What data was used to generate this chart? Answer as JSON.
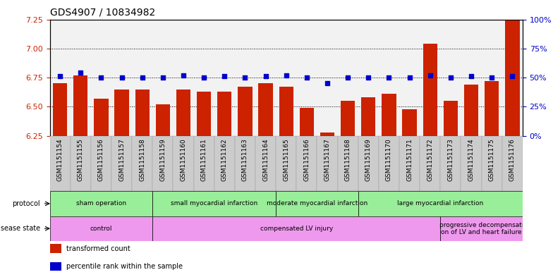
{
  "title": "GDS4907 / 10834982",
  "samples": [
    "GSM1151154",
    "GSM1151155",
    "GSM1151156",
    "GSM1151157",
    "GSM1151158",
    "GSM1151159",
    "GSM1151160",
    "GSM1151161",
    "GSM1151162",
    "GSM1151163",
    "GSM1151164",
    "GSM1151165",
    "GSM1151166",
    "GSM1151167",
    "GSM1151168",
    "GSM1151169",
    "GSM1151170",
    "GSM1151171",
    "GSM1151172",
    "GSM1151173",
    "GSM1151174",
    "GSM1151175",
    "GSM1151176"
  ],
  "bar_values": [
    6.7,
    6.77,
    6.57,
    6.65,
    6.65,
    6.52,
    6.65,
    6.63,
    6.63,
    6.67,
    6.7,
    6.67,
    6.49,
    6.28,
    6.55,
    6.58,
    6.61,
    6.48,
    7.04,
    6.55,
    6.69,
    6.72,
    7.25
  ],
  "dot_percentiles": [
    51,
    54,
    50,
    50,
    50,
    50,
    52,
    50,
    51,
    50,
    51,
    52,
    50,
    45,
    50,
    50,
    50,
    50,
    52,
    50,
    51,
    50,
    51
  ],
  "ylim_left": [
    6.25,
    7.25
  ],
  "yticks_left": [
    6.25,
    6.5,
    6.75,
    7.0,
    7.25
  ],
  "ylim_right": [
    0,
    100
  ],
  "yticks_right": [
    0,
    25,
    50,
    75,
    100
  ],
  "bar_color": "#cc2200",
  "dot_color": "#0000cc",
  "bg_color": "#ffffff",
  "grid_color": "#000000",
  "protocol_labels": [
    {
      "text": "sham operation",
      "start": 0,
      "end": 5,
      "color": "#99ee99"
    },
    {
      "text": "small myocardial infarction",
      "start": 5,
      "end": 11,
      "color": "#99ee99"
    },
    {
      "text": "moderate myocardial infarction",
      "start": 11,
      "end": 15,
      "color": "#99ee99"
    },
    {
      "text": "large myocardial infarction",
      "start": 15,
      "end": 23,
      "color": "#99ee99"
    }
  ],
  "disease_labels": [
    {
      "text": "control",
      "start": 0,
      "end": 5,
      "color": "#ee99ee"
    },
    {
      "text": "compensated LV injury",
      "start": 5,
      "end": 19,
      "color": "#ee99ee"
    },
    {
      "text": "progressive decompensati\non of LV and heart failure",
      "start": 19,
      "end": 23,
      "color": "#ee99ee"
    }
  ],
  "legend_items": [
    {
      "label": "transformed count",
      "color": "#cc2200"
    },
    {
      "label": "percentile rank within the sample",
      "color": "#0000cc"
    }
  ]
}
